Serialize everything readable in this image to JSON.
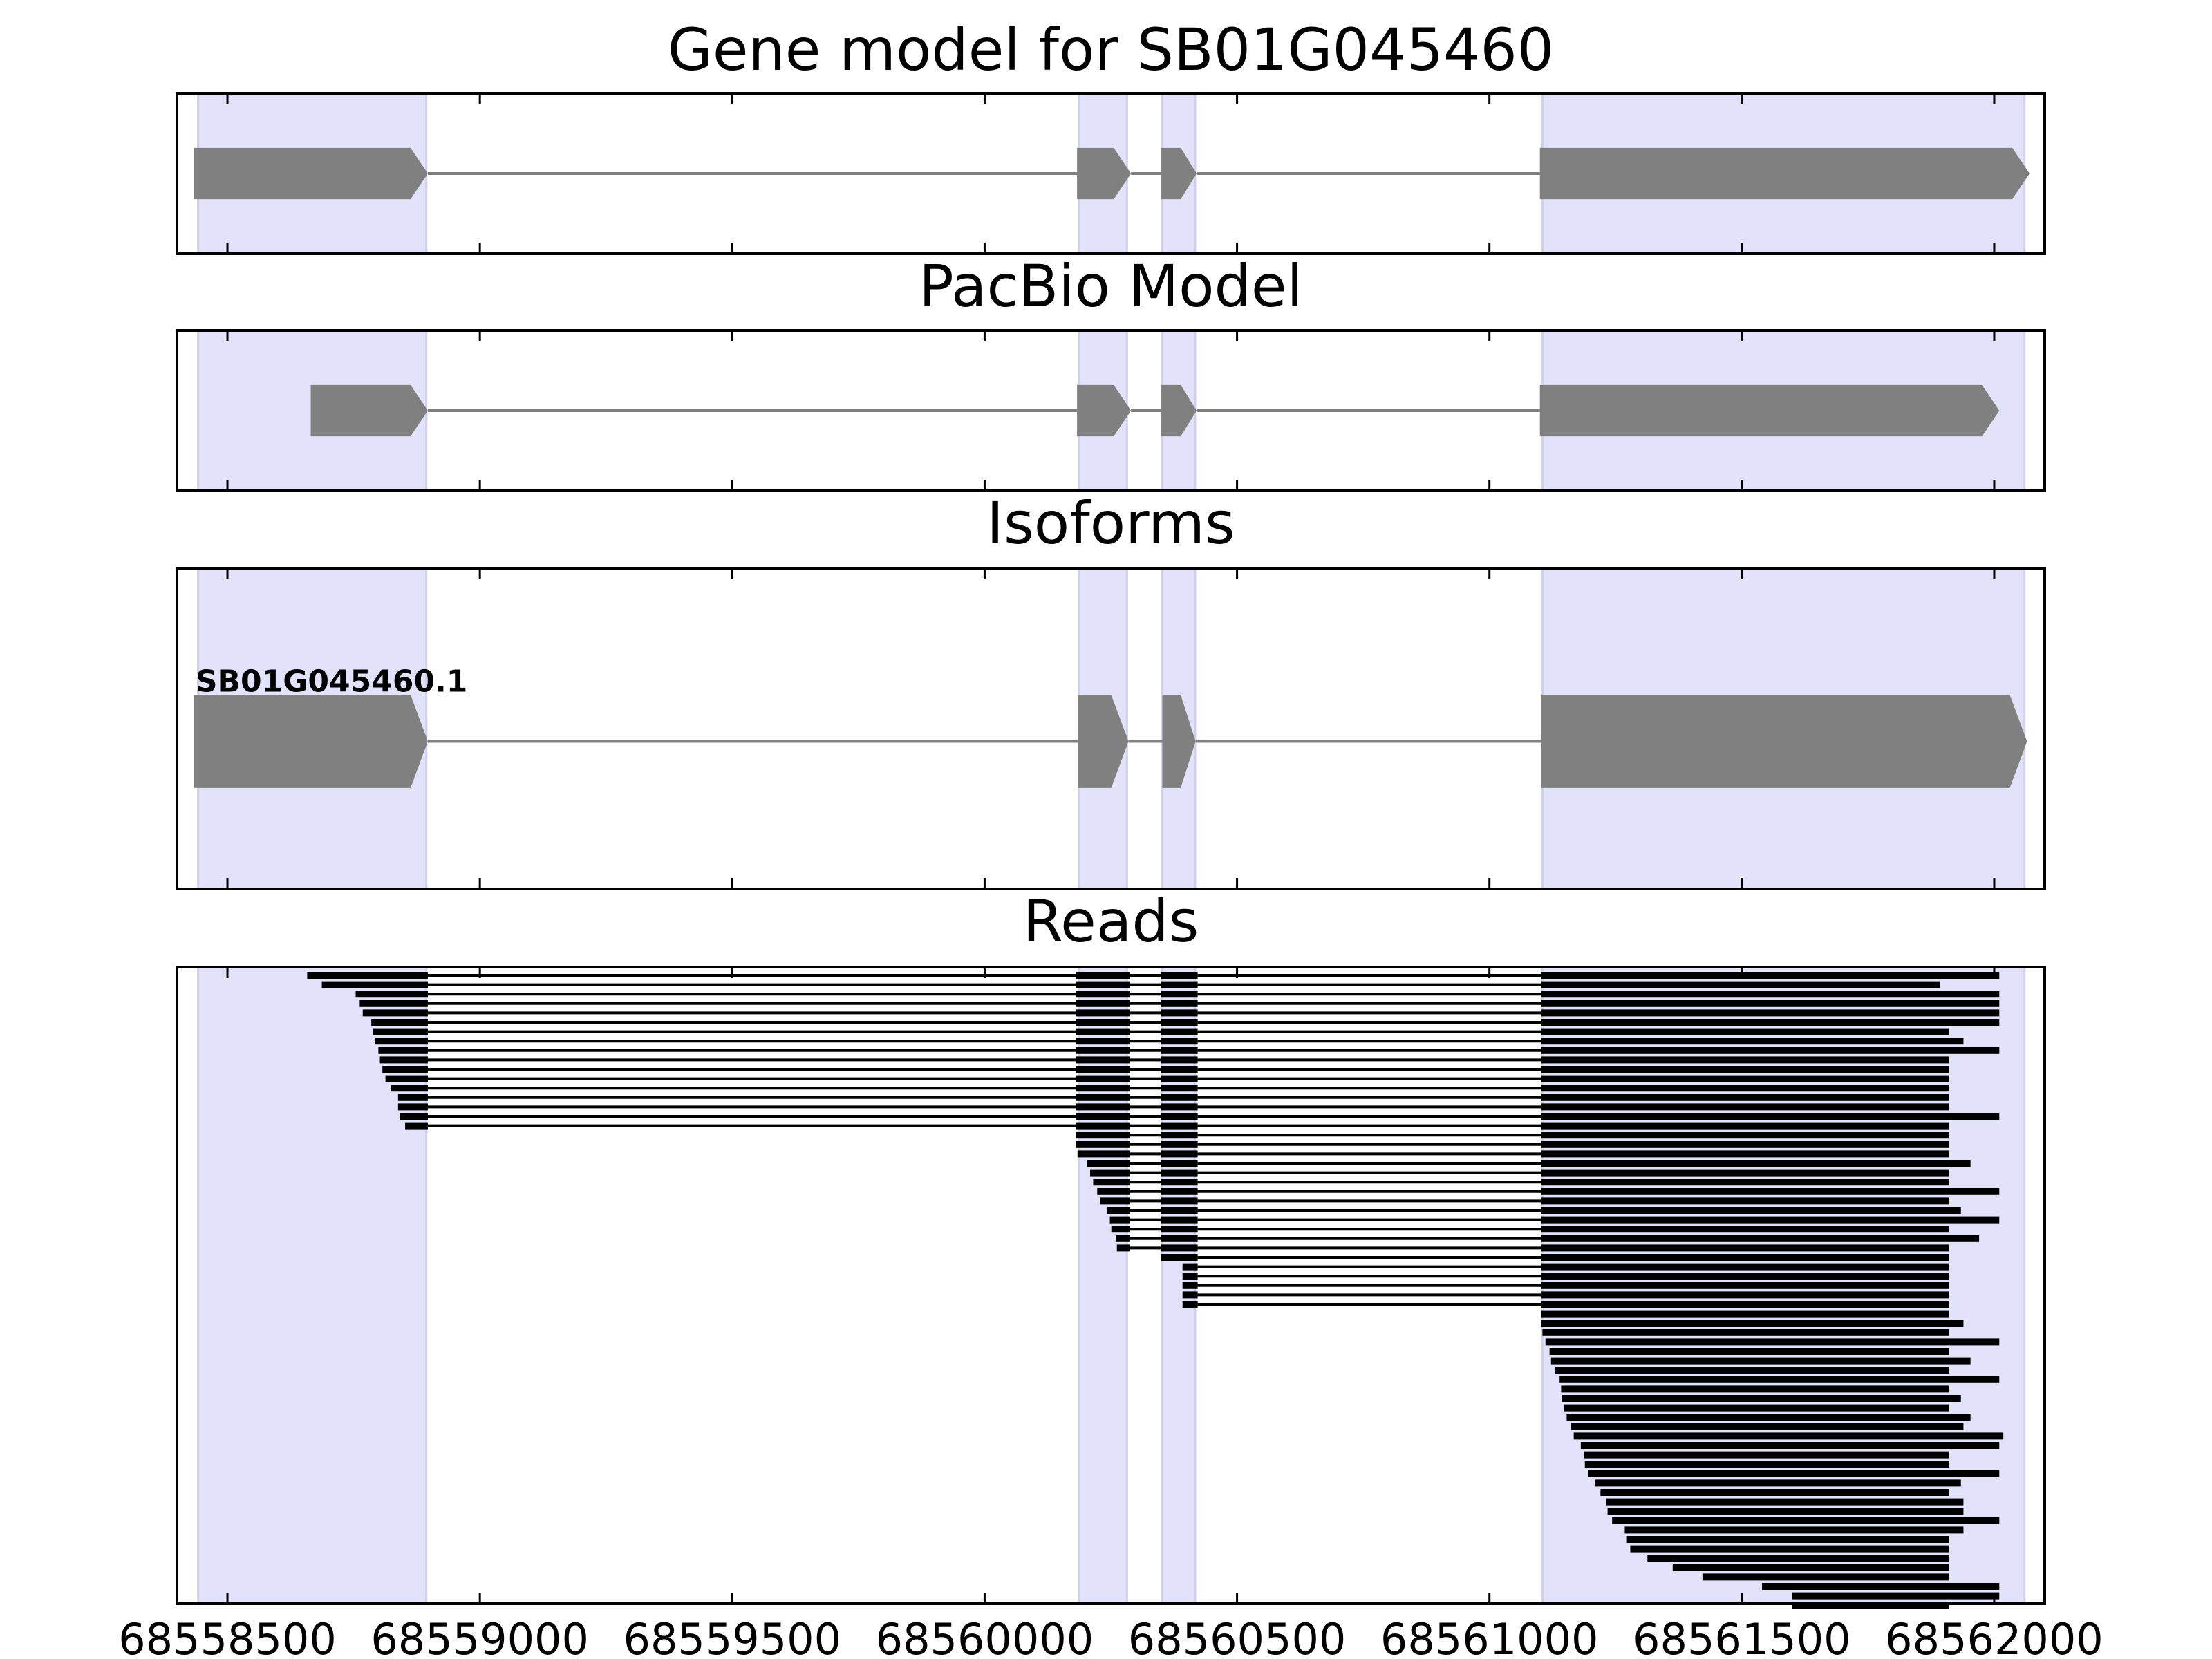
{
  "chart_data": [
    {
      "type": "gene",
      "title": "Gene model for SB01G045460",
      "xlim": [
        68558400,
        68562100
      ],
      "xticks": [
        68558500,
        68559000,
        68559500,
        68560000,
        68560500,
        68561000,
        68561500,
        68562000
      ],
      "show_xtick_labels": false,
      "shaded": [
        [
          68558442,
          68558894
        ],
        [
          68560187,
          68560282
        ],
        [
          68560352,
          68560417
        ],
        [
          68561105,
          68562060
        ]
      ],
      "shade_color": "#e2e2fa",
      "color": "#808080",
      "strand": "+",
      "exons": [
        [
          68558434,
          68558897
        ],
        [
          68560183,
          68560290
        ],
        [
          68560350,
          68560420
        ],
        [
          68561100,
          68562070
        ]
      ]
    },
    {
      "type": "gene",
      "title": "PacBio Model",
      "xlim": [
        68558400,
        68562100
      ],
      "xticks": [
        68558500,
        68559000,
        68559500,
        68560000,
        68560500,
        68561000,
        68561500,
        68562000
      ],
      "show_xtick_labels": false,
      "shaded": [
        [
          68558442,
          68558894
        ],
        [
          68560187,
          68560282
        ],
        [
          68560352,
          68560417
        ],
        [
          68561105,
          68562060
        ]
      ],
      "shade_color": "#e2e2fa",
      "color": "#808080",
      "strand": "+",
      "exons": [
        [
          68558665,
          68558897
        ],
        [
          68560183,
          68560290
        ],
        [
          68560350,
          68560420
        ],
        [
          68561100,
          68562010
        ]
      ]
    },
    {
      "type": "isoforms",
      "title": "Isoforms",
      "xlim": [
        68558400,
        68562100
      ],
      "xticks": [
        68558500,
        68559000,
        68559500,
        68560000,
        68560500,
        68561000,
        68561500,
        68562000
      ],
      "show_xtick_labels": false,
      "shaded": [
        [
          68558442,
          68558894
        ],
        [
          68560187,
          68560282
        ],
        [
          68560352,
          68560417
        ],
        [
          68561105,
          68562060
        ]
      ],
      "shade_color": "#e2e2fa",
      "color": "#808080",
      "strand": "+",
      "isoforms": [
        {
          "name": "SB01G045460.1",
          "exons": [
            [
              68558434,
              68558897
            ],
            [
              68560185,
              68560285
            ],
            [
              68560352,
              68560418
            ],
            [
              68561103,
              68562065
            ]
          ]
        }
      ]
    },
    {
      "type": "reads",
      "title": "Reads",
      "xlim": [
        68558400,
        68562100
      ],
      "xticks": [
        68558500,
        68559000,
        68559500,
        68560000,
        68560500,
        68561000,
        68561500,
        68562000
      ],
      "show_xtick_labels": true,
      "shaded": [
        [
          68558442,
          68558894
        ],
        [
          68560187,
          68560282
        ],
        [
          68560352,
          68560417
        ],
        [
          68561105,
          68562060
        ]
      ],
      "shade_color": "#e2e2fa",
      "color": "#000000",
      "reads": [
        [
          [
            68558658,
            68558897
          ],
          [
            68560181,
            68560288
          ],
          [
            68560349,
            68560422
          ],
          [
            68561102,
            68562010
          ]
        ],
        [
          [
            68558687,
            68558897
          ],
          [
            68560181,
            68560288
          ],
          [
            68560349,
            68560422
          ],
          [
            68561102,
            68561892
          ]
        ],
        [
          [
            68558754,
            68558897
          ],
          [
            68560181,
            68560288
          ],
          [
            68560349,
            68560422
          ],
          [
            68561102,
            68562010
          ]
        ],
        [
          [
            68558762,
            68558897
          ],
          [
            68560181,
            68560288
          ],
          [
            68560349,
            68560422
          ],
          [
            68561102,
            68562010
          ]
        ],
        [
          [
            68558768,
            68558897
          ],
          [
            68560181,
            68560288
          ],
          [
            68560349,
            68560422
          ],
          [
            68561102,
            68562010
          ]
        ],
        [
          [
            68558785,
            68558897
          ],
          [
            68560181,
            68560288
          ],
          [
            68560349,
            68560422
          ],
          [
            68561102,
            68562010
          ]
        ],
        [
          [
            68558788,
            68558897
          ],
          [
            68560181,
            68560288
          ],
          [
            68560349,
            68560422
          ],
          [
            68561102,
            68561911
          ]
        ],
        [
          [
            68558793,
            68558897
          ],
          [
            68560181,
            68560288
          ],
          [
            68560349,
            68560422
          ],
          [
            68561102,
            68561939
          ]
        ],
        [
          [
            68558799,
            68558897
          ],
          [
            68560181,
            68560288
          ],
          [
            68560349,
            68560422
          ],
          [
            68561102,
            68562010
          ]
        ],
        [
          [
            68558802,
            68558897
          ],
          [
            68560181,
            68560288
          ],
          [
            68560349,
            68560422
          ],
          [
            68561102,
            68561911
          ]
        ],
        [
          [
            68558807,
            68558897
          ],
          [
            68560181,
            68560288
          ],
          [
            68560349,
            68560422
          ],
          [
            68561102,
            68561911
          ]
        ],
        [
          [
            68558813,
            68558897
          ],
          [
            68560181,
            68560288
          ],
          [
            68560349,
            68560422
          ],
          [
            68561102,
            68561911
          ]
        ],
        [
          [
            68558824,
            68558897
          ],
          [
            68560181,
            68560288
          ],
          [
            68560349,
            68560422
          ],
          [
            68561102,
            68561911
          ]
        ],
        [
          [
            68558838,
            68558897
          ],
          [
            68560181,
            68560288
          ],
          [
            68560349,
            68560422
          ],
          [
            68561102,
            68561911
          ]
        ],
        [
          [
            68558838,
            68558897
          ],
          [
            68560181,
            68560288
          ],
          [
            68560349,
            68560422
          ],
          [
            68561102,
            68561911
          ]
        ],
        [
          [
            68558841,
            68558897
          ],
          [
            68560181,
            68560288
          ],
          [
            68560349,
            68560422
          ],
          [
            68561102,
            68562010
          ]
        ],
        [
          [
            68558852,
            68558897
          ],
          [
            68560181,
            68560288
          ],
          [
            68560349,
            68560422
          ],
          [
            68561102,
            68561911
          ]
        ],
        [
          [
            68560181,
            68560288
          ],
          [
            68560349,
            68560422
          ],
          [
            68561102,
            68561911
          ]
        ],
        [
          [
            68560181,
            68560288
          ],
          [
            68560349,
            68560422
          ],
          [
            68561102,
            68561911
          ]
        ],
        [
          [
            68560184,
            68560288
          ],
          [
            68560349,
            68560422
          ],
          [
            68561102,
            68561911
          ]
        ],
        [
          [
            68560203,
            68560288
          ],
          [
            68560349,
            68560422
          ],
          [
            68561102,
            68561953
          ]
        ],
        [
          [
            68560209,
            68560288
          ],
          [
            68560349,
            68560422
          ],
          [
            68561102,
            68561911
          ]
        ],
        [
          [
            68560215,
            68560288
          ],
          [
            68560349,
            68560422
          ],
          [
            68561102,
            68561911
          ]
        ],
        [
          [
            68560223,
            68560288
          ],
          [
            68560349,
            68560422
          ],
          [
            68561102,
            68562010
          ]
        ],
        [
          [
            68560229,
            68560288
          ],
          [
            68560349,
            68560422
          ],
          [
            68561102,
            68561911
          ]
        ],
        [
          [
            68560243,
            68560288
          ],
          [
            68560349,
            68560422
          ],
          [
            68561102,
            68561934
          ]
        ],
        [
          [
            68560248,
            68560288
          ],
          [
            68560349,
            68560422
          ],
          [
            68561102,
            68562010
          ]
        ],
        [
          [
            68560251,
            68560288
          ],
          [
            68560349,
            68560422
          ],
          [
            68561102,
            68561911
          ]
        ],
        [
          [
            68560260,
            68560288
          ],
          [
            68560349,
            68560422
          ],
          [
            68561102,
            68561970
          ]
        ],
        [
          [
            68560262,
            68560288
          ],
          [
            68560349,
            68560422
          ],
          [
            68561102,
            68561911
          ]
        ],
        [
          [
            68560349,
            68560422
          ],
          [
            68561102,
            68561911
          ]
        ],
        [
          [
            68560392,
            68560422
          ],
          [
            68561102,
            68561911
          ]
        ],
        [
          [
            68560392,
            68560422
          ],
          [
            68561102,
            68561911
          ]
        ],
        [
          [
            68560392,
            68560422
          ],
          [
            68561102,
            68561911
          ]
        ],
        [
          [
            68560392,
            68560422
          ],
          [
            68561102,
            68561911
          ]
        ],
        [
          [
            68560392,
            68560422
          ],
          [
            68561102,
            68561911
          ]
        ],
        [
          [
            68561102,
            68561911
          ]
        ],
        [
          [
            68561102,
            68561939
          ]
        ],
        [
          [
            68561105,
            68561911
          ]
        ],
        [
          [
            68561111,
            68562010
          ]
        ],
        [
          [
            68561119,
            68561911
          ]
        ],
        [
          [
            68561122,
            68561953
          ]
        ],
        [
          [
            68561130,
            68561911
          ]
        ],
        [
          [
            68561139,
            68562010
          ]
        ],
        [
          [
            68561142,
            68561911
          ]
        ],
        [
          [
            68561144,
            68561934
          ]
        ],
        [
          [
            68561147,
            68561911
          ]
        ],
        [
          [
            68561153,
            68561953
          ]
        ],
        [
          [
            68561161,
            68561939
          ]
        ],
        [
          [
            68561167,
            68562018
          ]
        ],
        [
          [
            68561181,
            68562010
          ]
        ],
        [
          [
            68561187,
            68561911
          ]
        ],
        [
          [
            68561189,
            68561911
          ]
        ],
        [
          [
            68561195,
            68562010
          ]
        ],
        [
          [
            68561209,
            68561934
          ]
        ],
        [
          [
            68561220,
            68561911
          ]
        ],
        [
          [
            68561231,
            68561939
          ]
        ],
        [
          [
            68561234,
            68561939
          ]
        ],
        [
          [
            68561243,
            68562010
          ]
        ],
        [
          [
            68561268,
            68561939
          ]
        ],
        [
          [
            68561271,
            68561911
          ]
        ],
        [
          [
            68561279,
            68561911
          ]
        ],
        [
          [
            68561313,
            68561911
          ]
        ],
        [
          [
            68561363,
            68561911
          ]
        ],
        [
          [
            68561422,
            68561911
          ]
        ],
        [
          [
            68561540,
            68562010
          ]
        ],
        [
          [
            68561599,
            68562010
          ]
        ],
        [
          [
            68561599,
            68561911
          ]
        ]
      ]
    }
  ]
}
